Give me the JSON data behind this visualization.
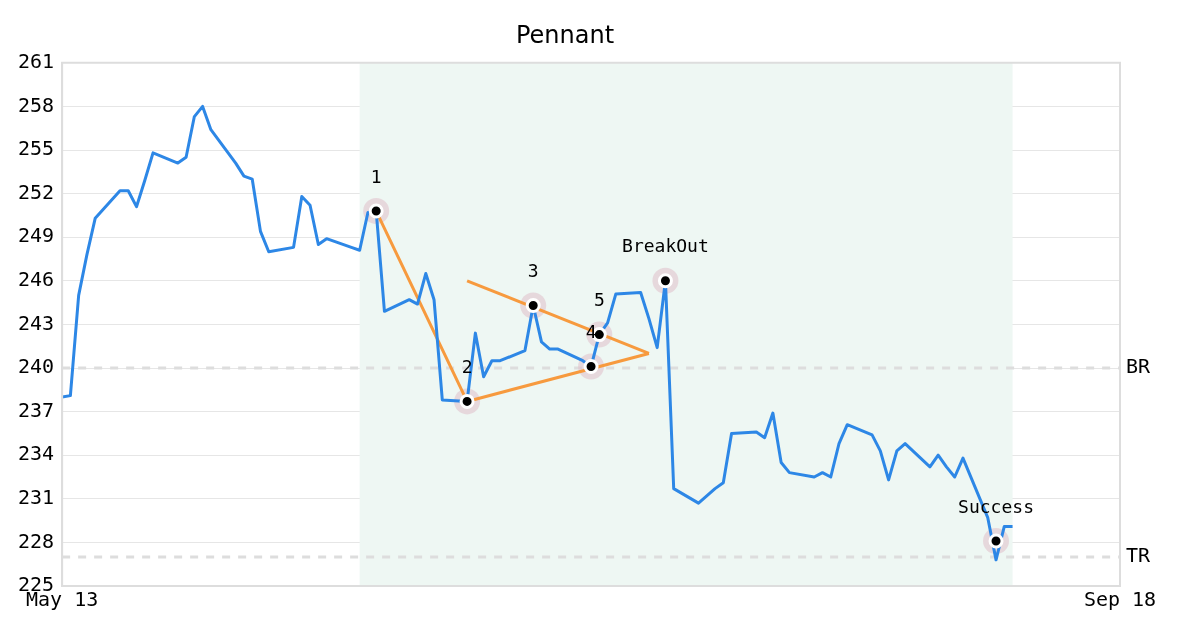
{
  "chart_data": {
    "type": "line",
    "title": "Pennant",
    "x": [
      "--05-13",
      "--05-14",
      "--05-15",
      "--05-16",
      "--05-17",
      "--05-20",
      "--05-21",
      "--05-22",
      "--05-23",
      "--05-24",
      "--05-27",
      "--05-28",
      "--05-29",
      "--05-30",
      "--05-31",
      "--06-03",
      "--06-04",
      "--06-05",
      "--06-06",
      "--06-07",
      "--06-10",
      "--06-11",
      "--06-12",
      "--06-13",
      "--06-14",
      "--06-17",
      "--06-18",
      "--06-19",
      "--06-20",
      "--06-21",
      "--06-24",
      "--06-25",
      "--06-26",
      "--06-27",
      "--06-28",
      "--07-01",
      "--07-02",
      "--07-03",
      "--07-04",
      "--07-05",
      "--07-08",
      "--07-09",
      "--07-10",
      "--07-11",
      "--07-12",
      "--07-15",
      "--07-16",
      "--07-17",
      "--07-18",
      "--07-19",
      "--07-22",
      "--07-23",
      "--07-24",
      "--07-25",
      "--07-26",
      "--07-29",
      "--07-30",
      "--07-31",
      "--08-01",
      "--08-02",
      "--08-05",
      "--08-06",
      "--08-07",
      "--08-08",
      "--08-09",
      "--08-12",
      "--08-13",
      "--08-14",
      "--08-15",
      "--08-16",
      "--08-19",
      "--08-20",
      "--08-21",
      "--08-22",
      "--08-23",
      "--08-26",
      "--08-27",
      "--08-28",
      "--08-29",
      "--08-30",
      "--09-02",
      "--09-03",
      "--09-04",
      "--09-05"
    ],
    "series": [
      {
        "color": "#2d87e6",
        "marker": "none",
        "values": [
          238.0,
          238.1,
          245.0,
          247.8,
          250.3,
          252.2,
          252.2,
          251.1,
          252.9,
          254.8,
          254.1,
          254.5,
          257.3,
          258.0,
          256.4,
          254.1,
          253.2,
          253.0,
          249.4,
          248.0,
          248.3,
          251.8,
          251.2,
          248.5,
          248.9,
          248.3,
          248.1,
          250.7,
          250.8,
          243.9,
          244.7,
          244.4,
          246.5,
          244.7,
          237.8,
          237.7,
          242.4,
          239.4,
          240.5,
          240.5,
          241.2,
          244.3,
          241.8,
          241.3,
          241.3,
          240.5,
          240.1,
          242.3,
          243.1,
          245.1,
          245.2,
          243.4,
          241.4,
          246.0,
          231.7,
          230.7,
          231.2,
          231.7,
          232.1,
          235.5,
          235.6,
          235.2,
          236.9,
          233.5,
          232.8,
          232.5,
          232.8,
          232.5,
          234.8,
          236.1,
          235.4,
          234.3,
          232.3,
          234.3,
          234.8,
          233.2,
          234.0,
          233.2,
          232.5,
          233.8,
          229.7,
          226.8,
          229.1,
          229.1
        ]
      },
      {
        "type": "line",
        "color": "#f79a3e",
        "marker": "none",
        "x": [
          "--06-20",
          "--07-01",
          "--07-23"
        ],
        "values": [
          250.8,
          237.7,
          241.0
        ]
      },
      {
        "type": "line",
        "color": "#f79a3e",
        "marker": "none",
        "x": [
          "--07-01",
          "--07-23"
        ],
        "values": [
          246.0,
          241.0
        ]
      },
      {
        "type": "scatter",
        "color": "#000000",
        "marker": "circle",
        "x": [
          "--06-20",
          "--07-01",
          "--07-09",
          "--07-16",
          "--07-17",
          "--07-25",
          "--09-03"
        ],
        "values": [
          250.8,
          237.7,
          244.3,
          240.1,
          242.3,
          246.0,
          228.1
        ]
      }
    ],
    "xlim": [
      "--05-13",
      "--09-18"
    ],
    "xticks": [
      {
        "value": "--05-13",
        "label": "May 13"
      },
      {
        "value": "--09-18",
        "label": "Sep 18"
      }
    ],
    "ylim": [
      225,
      261
    ],
    "yticks": [
      225,
      228,
      231,
      234,
      237,
      240,
      243,
      246,
      249,
      252,
      255,
      258,
      261
    ],
    "grid": "y",
    "legend": false,
    "ref_lines": [
      {
        "axis": "y",
        "value": 240,
        "label": "BR",
        "color": "#dddddd",
        "line_style": "dashed"
      },
      {
        "axis": "y",
        "value": 227,
        "label": "TR",
        "color": "#dddddd",
        "line_style": "dashed"
      }
    ],
    "bands": [
      {
        "axis": "x",
        "from": "--06-18",
        "to": "--09-05",
        "color": "#eef7f3"
      }
    ],
    "annotations": [
      {
        "text": "1",
        "x": "--06-20",
        "y": 250.8
      },
      {
        "text": "2",
        "x": "--07-01",
        "y": 237.7
      },
      {
        "text": "3",
        "x": "--07-09",
        "y": 244.3
      },
      {
        "text": "4",
        "x": "--07-16",
        "y": 240.1
      },
      {
        "text": "5",
        "x": "--07-17",
        "y": 242.3
      },
      {
        "text": "BreakOut",
        "x": "--07-25",
        "y": 246.0
      },
      {
        "text": "Success",
        "x": "--09-03",
        "y": 228.1
      }
    ]
  }
}
